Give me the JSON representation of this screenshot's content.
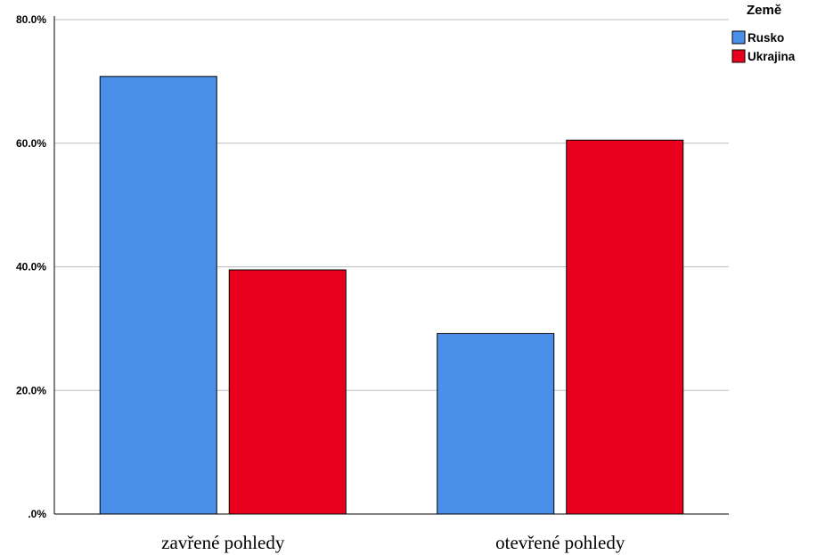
{
  "chart_data": {
    "type": "bar",
    "categories": [
      "zavřené pohledy",
      "otevřené pohledy"
    ],
    "series": [
      {
        "name": "Rusko",
        "color": "#4a90e8",
        "values": [
          70.8,
          29.2
        ]
      },
      {
        "name": "Ukrajina",
        "color": "#e8001c",
        "values": [
          39.5,
          60.5
        ]
      }
    ],
    "ylim": [
      0,
      80
    ],
    "yticks": [
      ".0%",
      "20.0%",
      "40.0%",
      "60.0%",
      "80.0%"
    ],
    "ytick_values": [
      0,
      20,
      40,
      60,
      80
    ],
    "grid": true,
    "legend": {
      "title": "Země",
      "position": "top-right"
    },
    "xlabel": "",
    "ylabel": ""
  }
}
